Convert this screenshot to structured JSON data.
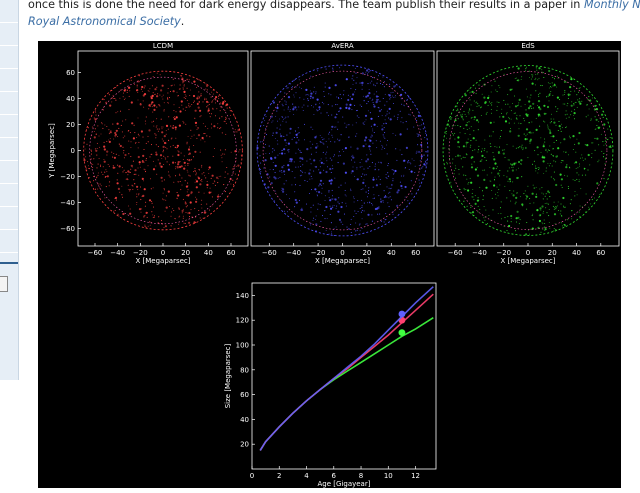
{
  "article": {
    "line1": "once this is done the need for dark energy disappears. The team publish their results in a paper in ",
    "journal_part1": "Monthly Noti",
    "journal_part2": "Royal Astronomical Society",
    "line2_end": "."
  },
  "figure": {
    "panels": [
      {
        "title": "LCDM",
        "xlabel": "X [Megaparsec]",
        "ylabel": "Y [Megaparsec]",
        "color": "#ff4040"
      },
      {
        "title": "AvERA",
        "xlabel": "X [Megaparsec]",
        "ylabel": "",
        "color": "#5050ff"
      },
      {
        "title": "EdS",
        "xlabel": "X [Megaparsec]",
        "ylabel": "",
        "color": "#30e030"
      }
    ],
    "panel_xticks": [
      "−60",
      "−40",
      "−20",
      "0",
      "20",
      "40",
      "60"
    ],
    "panel_yticks": [
      "60",
      "40",
      "20",
      "0",
      "−20",
      "−40",
      "−60"
    ],
    "chart": {
      "xlabel": "Age [Gigayear]",
      "ylabel": "Size [Megaparsec]",
      "xticks": [
        "0",
        "2",
        "4",
        "6",
        "8",
        "10",
        "12"
      ],
      "yticks": [
        "20",
        "40",
        "60",
        "80",
        "100",
        "120",
        "140"
      ]
    }
  },
  "chart_data": {
    "type": "line",
    "xlabel": "Age [Gigayear]",
    "ylabel": "Size [Megaparsec]",
    "xlim": [
      0,
      13.5
    ],
    "ylim": [
      0,
      150
    ],
    "grid": false,
    "series": [
      {
        "color": "#40ff40",
        "x": [
          0.6,
          1,
          2,
          3,
          4,
          5,
          6,
          7,
          8,
          9,
          10,
          11,
          12,
          13.3
        ],
        "y": [
          15,
          22,
          34,
          45,
          55,
          64,
          72,
          79,
          86,
          93,
          100,
          107,
          113,
          122
        ],
        "marker": {
          "x": 11,
          "y": 110
        }
      },
      {
        "color": "#ff4070",
        "x": [
          0.6,
          1,
          2,
          3,
          4,
          5,
          6,
          7,
          8,
          9,
          10,
          11,
          12,
          13.3
        ],
        "y": [
          15,
          22,
          34,
          45,
          55,
          64,
          73,
          81,
          90,
          99,
          108,
          118,
          128,
          141
        ],
        "marker": {
          "x": 11,
          "y": 120
        }
      },
      {
        "color": "#6060ff",
        "x": [
          0.6,
          1,
          2,
          3,
          4,
          5,
          6,
          7,
          8,
          9,
          10,
          11,
          12,
          13.3
        ],
        "y": [
          15,
          22,
          34,
          45,
          55,
          64,
          73,
          82,
          91,
          101,
          112,
          123,
          134,
          147
        ],
        "marker": {
          "x": 11,
          "y": 125
        }
      }
    ]
  }
}
